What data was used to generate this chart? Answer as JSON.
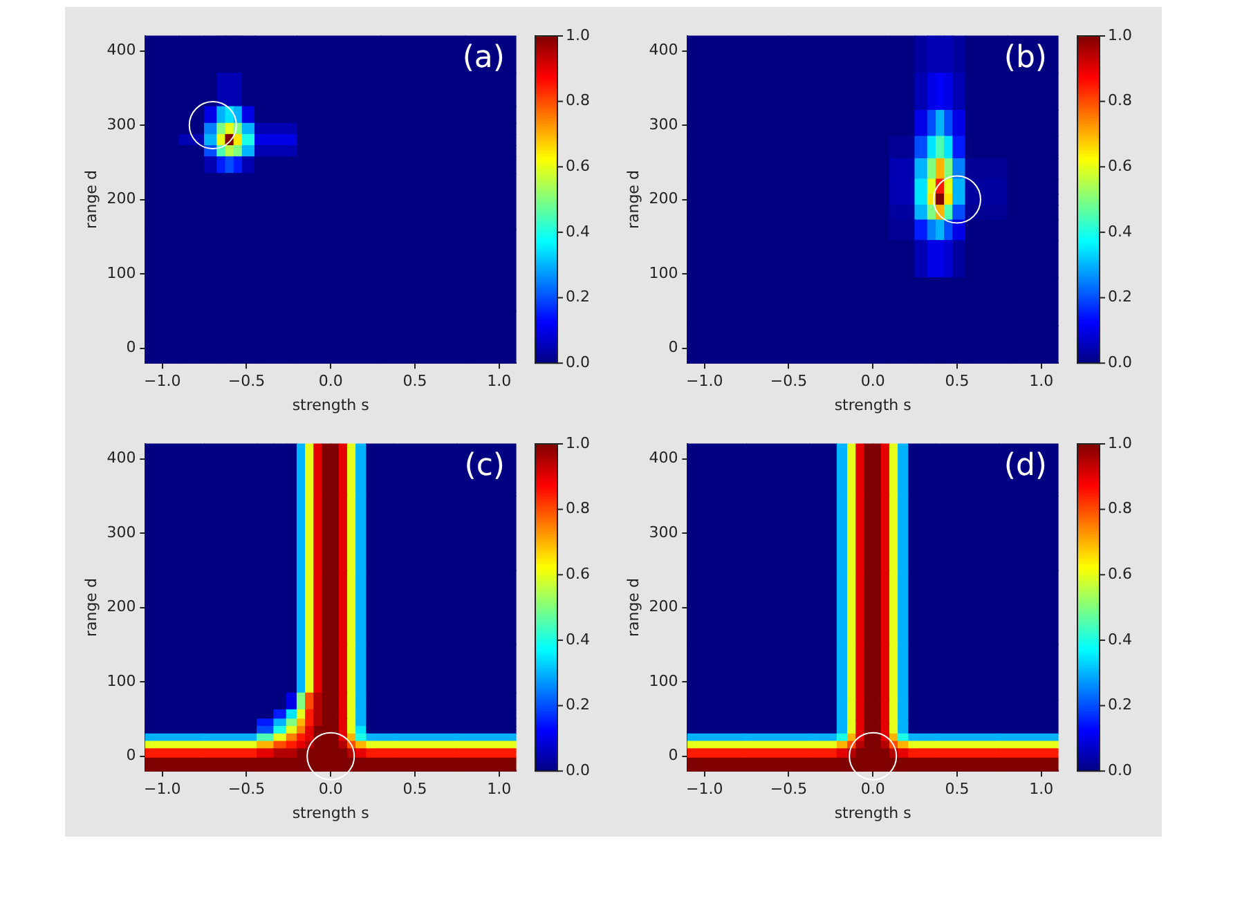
{
  "chart_data": [
    {
      "type": "heatmap",
      "annotations": [
        "(a)"
      ],
      "xlabel": "strength s",
      "ylabel": "range d",
      "xlim": [
        -1.1,
        1.1
      ],
      "ylim": [
        -20,
        420
      ],
      "xticks": [
        {
          "value": -1,
          "label": "−1.0"
        },
        {
          "value": -0.5,
          "label": "−0.5"
        },
        {
          "value": 0,
          "label": "0.0"
        },
        {
          "value": 0.5,
          "label": "0.5"
        },
        {
          "value": 1,
          "label": "1.0"
        }
      ],
      "yticks": [
        0,
        100,
        200,
        300,
        400
      ],
      "clim": [
        0,
        1
      ],
      "cticks": [
        {
          "value": 0,
          "label": "0.0"
        },
        {
          "value": 0.2,
          "label": "0.2"
        },
        {
          "value": 0.4,
          "label": "0.4"
        },
        {
          "value": 0.6,
          "label": "0.6"
        },
        {
          "value": 0.8,
          "label": "0.8"
        },
        {
          "value": 1,
          "label": "1.0"
        }
      ],
      "x": [
        -1.0,
        -0.8,
        -0.7,
        -0.65,
        -0.6,
        -0.55,
        -0.5,
        -0.4,
        0.0,
        0.6,
        1.0
      ],
      "y": [
        400,
        340,
        310,
        295,
        280,
        265,
        250,
        220,
        100,
        0
      ],
      "cells": [
        [
          0,
          0,
          0,
          0,
          0,
          0,
          0,
          0,
          0,
          0,
          0
        ],
        [
          0,
          0,
          0,
          0.05,
          0.05,
          0.05,
          0,
          0,
          0,
          0,
          0
        ],
        [
          0,
          0,
          0.1,
          0.3,
          0.35,
          0.3,
          0.1,
          0,
          0,
          0,
          0
        ],
        [
          0,
          0,
          0.25,
          0.5,
          0.6,
          0.5,
          0.3,
          0.05,
          0,
          0,
          0
        ],
        [
          0,
          0.05,
          0.3,
          0.6,
          1.0,
          0.65,
          0.4,
          0.1,
          0,
          0,
          0
        ],
        [
          0,
          0,
          0.2,
          0.45,
          0.55,
          0.5,
          0.3,
          0.05,
          0,
          0,
          0
        ],
        [
          0,
          0,
          0.05,
          0.15,
          0.2,
          0.15,
          0.05,
          0,
          0,
          0,
          0
        ],
        [
          0,
          0,
          0,
          0,
          0,
          0,
          0,
          0,
          0,
          0,
          0
        ],
        [
          0,
          0,
          0,
          0,
          0,
          0,
          0,
          0,
          0,
          0,
          0
        ],
        [
          0,
          0,
          0,
          0,
          0,
          0,
          0,
          0,
          0,
          0,
          0
        ]
      ],
      "marker": "circle",
      "series": [
        {
          "type": "scatter",
          "x": [
            -0.7
          ],
          "values": [
            300
          ],
          "color": "#ffffff"
        }
      ]
    },
    {
      "type": "heatmap",
      "annotations": [
        "(b)"
      ],
      "xlabel": "strength s",
      "ylabel": "range d",
      "xlim": [
        -1.1,
        1.1
      ],
      "ylim": [
        -20,
        420
      ],
      "xticks": [
        {
          "value": -1,
          "label": "−1.0"
        },
        {
          "value": -0.5,
          "label": "−0.5"
        },
        {
          "value": 0,
          "label": "0.0"
        },
        {
          "value": 0.5,
          "label": "0.5"
        },
        {
          "value": 1,
          "label": "1.0"
        }
      ],
      "yticks": [
        0,
        100,
        200,
        300,
        400
      ],
      "clim": [
        0,
        1
      ],
      "cticks": [
        {
          "value": 0,
          "label": "0.0"
        },
        {
          "value": 0.2,
          "label": "0.2"
        },
        {
          "value": 0.4,
          "label": "0.4"
        },
        {
          "value": 0.6,
          "label": "0.6"
        },
        {
          "value": 0.8,
          "label": "0.8"
        },
        {
          "value": 1,
          "label": "1.0"
        }
      ],
      "x": [
        -1.0,
        0.0,
        0.2,
        0.3,
        0.35,
        0.4,
        0.45,
        0.5,
        0.6,
        1.0
      ],
      "y": [
        400,
        340,
        300,
        270,
        240,
        215,
        200,
        185,
        160,
        130,
        60,
        0
      ],
      "cells": [
        [
          0,
          0,
          0,
          0.03,
          0.05,
          0.05,
          0.05,
          0.03,
          0,
          0
        ],
        [
          0,
          0,
          0,
          0.05,
          0.1,
          0.12,
          0.1,
          0.05,
          0,
          0
        ],
        [
          0,
          0,
          0,
          0.1,
          0.2,
          0.3,
          0.2,
          0.1,
          0,
          0
        ],
        [
          0,
          0,
          0.02,
          0.2,
          0.35,
          0.45,
          0.35,
          0.15,
          0,
          0
        ],
        [
          0,
          0,
          0.05,
          0.3,
          0.5,
          0.7,
          0.5,
          0.25,
          0.02,
          0
        ],
        [
          0,
          0,
          0.05,
          0.35,
          0.6,
          0.85,
          0.6,
          0.3,
          0.03,
          0
        ],
        [
          0,
          0,
          0.05,
          0.35,
          0.65,
          1.0,
          0.65,
          0.3,
          0.03,
          0
        ],
        [
          0,
          0,
          0.03,
          0.3,
          0.5,
          0.7,
          0.45,
          0.2,
          0.02,
          0
        ],
        [
          0,
          0,
          0.02,
          0.15,
          0.25,
          0.3,
          0.2,
          0.1,
          0,
          0
        ],
        [
          0,
          0,
          0,
          0.05,
          0.1,
          0.1,
          0.08,
          0.03,
          0,
          0
        ],
        [
          0,
          0,
          0,
          0,
          0,
          0,
          0,
          0,
          0,
          0
        ],
        [
          0,
          0,
          0,
          0,
          0,
          0,
          0,
          0,
          0,
          0
        ]
      ],
      "marker": "circle",
      "series": [
        {
          "type": "scatter",
          "x": [
            0.5
          ],
          "values": [
            200
          ],
          "color": "#ffffff"
        }
      ]
    },
    {
      "type": "heatmap",
      "annotations": [
        "(c)"
      ],
      "xlabel": "strength s",
      "ylabel": "range d",
      "xlim": [
        -1.1,
        1.1
      ],
      "ylim": [
        -20,
        420
      ],
      "xticks": [
        {
          "value": -1,
          "label": "−1.0"
        },
        {
          "value": -0.5,
          "label": "−0.5"
        },
        {
          "value": 0,
          "label": "0.0"
        },
        {
          "value": 0.5,
          "label": "0.5"
        },
        {
          "value": 1,
          "label": "1.0"
        }
      ],
      "yticks": [
        0,
        100,
        200,
        300,
        400
      ],
      "clim": [
        0,
        1
      ],
      "cticks": [
        {
          "value": 0,
          "label": "0.0"
        },
        {
          "value": 0.2,
          "label": "0.2"
        },
        {
          "value": 0.4,
          "label": "0.4"
        },
        {
          "value": 0.6,
          "label": "0.6"
        },
        {
          "value": 0.8,
          "label": "0.8"
        },
        {
          "value": 1,
          "label": "1.0"
        }
      ],
      "x": [
        -1.0,
        -0.5,
        -0.375,
        -0.3,
        -0.225,
        -0.175,
        -0.125,
        -0.075,
        -0.025,
        0.025,
        0.075,
        0.125,
        0.175,
        0.25,
        0.5,
        1.0
      ],
      "y": [
        400,
        300,
        200,
        100,
        70,
        55,
        45,
        35,
        25,
        15,
        5,
        -10
      ],
      "cells": [
        [
          0,
          0,
          0,
          0,
          0,
          0.3,
          0.6,
          0.9,
          1,
          1,
          0.9,
          0.6,
          0.3,
          0,
          0,
          0
        ],
        [
          0,
          0,
          0,
          0,
          0,
          0.3,
          0.6,
          0.9,
          1,
          1,
          0.9,
          0.6,
          0.3,
          0,
          0,
          0
        ],
        [
          0,
          0,
          0,
          0,
          0,
          0.3,
          0.6,
          0.9,
          1,
          1,
          0.9,
          0.6,
          0.3,
          0,
          0,
          0
        ],
        [
          0,
          0,
          0,
          0,
          0,
          0.3,
          0.6,
          0.9,
          1,
          1,
          0.9,
          0.6,
          0.3,
          0,
          0,
          0
        ],
        [
          0,
          0,
          0,
          0,
          0.1,
          0.5,
          0.8,
          0.95,
          1,
          1,
          0.9,
          0.6,
          0.3,
          0,
          0,
          0
        ],
        [
          0,
          0,
          0,
          0.15,
          0.35,
          0.6,
          0.85,
          0.95,
          1,
          1,
          0.9,
          0.6,
          0.3,
          0,
          0,
          0
        ],
        [
          0,
          0,
          0.15,
          0.3,
          0.5,
          0.7,
          0.85,
          0.95,
          1,
          1,
          0.9,
          0.6,
          0.3,
          0,
          0,
          0
        ],
        [
          0,
          0,
          0.2,
          0.4,
          0.6,
          0.75,
          0.9,
          1,
          1,
          1,
          0.9,
          0.6,
          0.35,
          0,
          0,
          0
        ],
        [
          0.3,
          0.3,
          0.45,
          0.6,
          0.75,
          0.85,
          0.9,
          1,
          1,
          1,
          0.9,
          0.7,
          0.4,
          0.3,
          0.3,
          0.3
        ],
        [
          0.6,
          0.6,
          0.7,
          0.8,
          0.85,
          0.9,
          0.95,
          1,
          1,
          1,
          0.95,
          0.8,
          0.7,
          0.6,
          0.6,
          0.6
        ],
        [
          0.85,
          0.85,
          0.9,
          0.95,
          0.95,
          1,
          1,
          1,
          1,
          1,
          1,
          0.95,
          0.9,
          0.85,
          0.85,
          0.85
        ],
        [
          1,
          1,
          1,
          1,
          1,
          1,
          1,
          1,
          1,
          1,
          1,
          1,
          1,
          1,
          1,
          1
        ]
      ],
      "marker": "circle",
      "series": [
        {
          "type": "scatter",
          "x": [
            0
          ],
          "values": [
            0
          ],
          "color": "#ffffff"
        }
      ]
    },
    {
      "type": "heatmap",
      "annotations": [
        "(d)"
      ],
      "xlabel": "strength s",
      "ylabel": "range d",
      "xlim": [
        -1.1,
        1.1
      ],
      "ylim": [
        -20,
        420
      ],
      "xticks": [
        {
          "value": -1,
          "label": "−1.0"
        },
        {
          "value": -0.5,
          "label": "−0.5"
        },
        {
          "value": 0,
          "label": "0.0"
        },
        {
          "value": 0.5,
          "label": "0.5"
        },
        {
          "value": 1,
          "label": "1.0"
        }
      ],
      "yticks": [
        0,
        100,
        200,
        300,
        400
      ],
      "clim": [
        0,
        1
      ],
      "cticks": [
        {
          "value": 0,
          "label": "0.0"
        },
        {
          "value": 0.2,
          "label": "0.2"
        },
        {
          "value": 0.4,
          "label": "0.4"
        },
        {
          "value": 0.6,
          "label": "0.6"
        },
        {
          "value": 0.8,
          "label": "0.8"
        },
        {
          "value": 1,
          "label": "1.0"
        }
      ],
      "x": [
        -1.0,
        -0.5,
        -0.25,
        -0.175,
        -0.125,
        -0.075,
        -0.025,
        0.025,
        0.075,
        0.125,
        0.175,
        0.25,
        0.5,
        1.0
      ],
      "y": [
        400,
        300,
        200,
        100,
        50,
        35,
        25,
        15,
        5,
        -10
      ],
      "cells": [
        [
          0,
          0,
          0,
          0.3,
          0.6,
          0.9,
          1,
          1,
          0.9,
          0.6,
          0.3,
          0,
          0,
          0
        ],
        [
          0,
          0,
          0,
          0.3,
          0.6,
          0.9,
          1,
          1,
          0.9,
          0.6,
          0.3,
          0,
          0,
          0
        ],
        [
          0,
          0,
          0,
          0.3,
          0.6,
          0.9,
          1,
          1,
          0.9,
          0.6,
          0.3,
          0,
          0,
          0
        ],
        [
          0,
          0,
          0,
          0.3,
          0.6,
          0.9,
          1,
          1,
          0.9,
          0.6,
          0.3,
          0,
          0,
          0
        ],
        [
          0,
          0,
          0,
          0.3,
          0.6,
          0.9,
          1,
          1,
          0.9,
          0.6,
          0.3,
          0,
          0,
          0
        ],
        [
          0,
          0,
          0,
          0.3,
          0.6,
          0.9,
          1,
          1,
          0.9,
          0.6,
          0.3,
          0,
          0,
          0
        ],
        [
          0.3,
          0.3,
          0.3,
          0.4,
          0.7,
          0.9,
          1,
          1,
          0.9,
          0.7,
          0.4,
          0.3,
          0.3,
          0.3
        ],
        [
          0.6,
          0.6,
          0.6,
          0.7,
          0.8,
          0.95,
          1,
          1,
          0.95,
          0.8,
          0.7,
          0.6,
          0.6,
          0.6
        ],
        [
          0.85,
          0.85,
          0.85,
          0.9,
          0.95,
          1,
          1,
          1,
          1,
          0.95,
          0.9,
          0.85,
          0.85,
          0.85
        ],
        [
          1,
          1,
          1,
          1,
          1,
          1,
          1,
          1,
          1,
          1,
          1,
          1,
          1,
          1
        ]
      ],
      "marker": "circle",
      "series": [
        {
          "type": "scatter",
          "x": [
            0
          ],
          "values": [
            0
          ],
          "color": "#ffffff"
        }
      ]
    }
  ]
}
